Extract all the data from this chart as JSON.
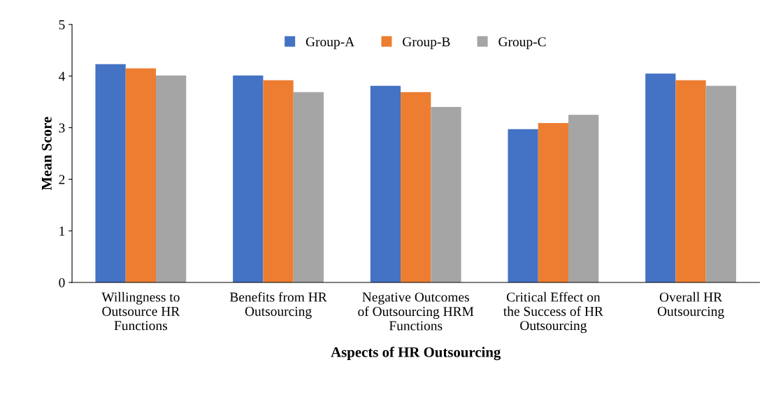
{
  "chart_data": {
    "type": "bar",
    "xlabel": "Aspects of HR Outsourcing",
    "ylabel": "Mean Score",
    "categories": [
      "Willingness to Outsource HR Functions",
      "Benefits from HR Outsourcing",
      "Negative Outcomes of Outsourcing HRM Functions",
      "Critical Effect on the Success of HR Outsourcing",
      "Overall HR Outsourcing"
    ],
    "series": [
      {
        "name": "Group-A",
        "color": "#4472c4",
        "values": [
          4.23,
          4.01,
          3.81,
          2.97,
          4.05
        ]
      },
      {
        "name": "Group-B",
        "color": "#ed7d31",
        "values": [
          4.15,
          3.92,
          3.69,
          3.09,
          3.92
        ]
      },
      {
        "name": "Group-C",
        "color": "#a5a5a5",
        "values": [
          4.01,
          3.69,
          3.4,
          3.25,
          3.81
        ]
      }
    ],
    "ylim": [
      0,
      5
    ],
    "yticks": [
      0,
      1,
      2,
      3,
      4,
      5
    ],
    "grid": false,
    "legend": "top"
  }
}
